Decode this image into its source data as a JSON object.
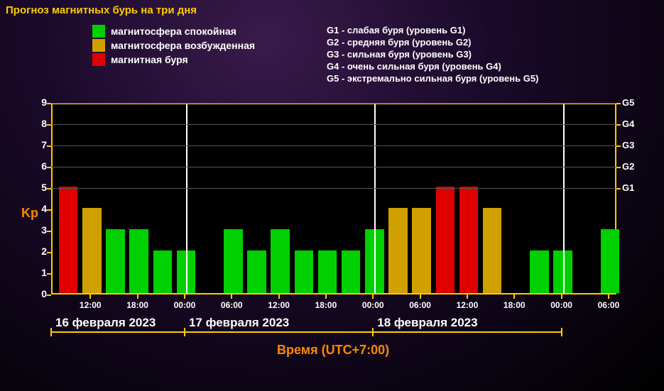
{
  "title": "Прогноз магнитных бурь на три дня",
  "legend_left": [
    {
      "color": "#00d000",
      "label": "магнитосфера спокойная"
    },
    {
      "color": "#d0a000",
      "label": "магнитосфера возбужденная"
    },
    {
      "color": "#e00000",
      "label": "магнитная буря"
    }
  ],
  "legend_right": [
    "G1 - слабая буря (уровень G1)",
    "G2 - средняя буря (уровень G2)",
    "G3 - сильная буря (уровень G3)",
    "G4 - очень сильная буря (уровень G4)",
    "G5 - экстремально сильная буря (уровень G5)"
  ],
  "chart": {
    "type": "bar",
    "background_color": "#000000",
    "border_color": "#ffcc00",
    "y_label": "Kp",
    "y_label_color": "#ff8800",
    "x_label": "Время (UTC+7:00)",
    "x_label_color": "#ff8800",
    "ylim": [
      0,
      9
    ],
    "yticks_left": [
      0,
      1,
      2,
      3,
      4,
      5,
      6,
      7,
      8,
      9
    ],
    "yticks_right": [
      {
        "value": 5,
        "label": "G1"
      },
      {
        "value": 6,
        "label": "G2"
      },
      {
        "value": 7,
        "label": "G3"
      },
      {
        "value": 8,
        "label": "G4"
      },
      {
        "value": 9,
        "label": "G5"
      }
    ],
    "x_start_hour": 7,
    "x_end_hour": 79,
    "time_ticks": [
      "12:00",
      "18:00",
      "00:00",
      "06:00",
      "12:00",
      "18:00",
      "00:00",
      "06:00",
      "12:00",
      "18:00",
      "00:00",
      "06:00"
    ],
    "time_tick_positions": [
      12,
      18,
      24,
      30,
      36,
      42,
      48,
      54,
      60,
      66,
      72,
      78
    ],
    "day_separators": [
      24,
      48,
      72
    ],
    "dates": [
      {
        "label": "16 февраля 2023",
        "from": 7,
        "to": 24
      },
      {
        "label": "17 февраля 2023",
        "from": 24,
        "to": 48
      },
      {
        "label": "18 февраля 2023",
        "from": 48,
        "to": 72
      }
    ],
    "bar_width_hours": 2.4,
    "colors": {
      "green": "#00d000",
      "orange": "#d0a000",
      "red": "#e00000"
    },
    "bars": [
      {
        "t": 9,
        "kp": 5,
        "c": "red"
      },
      {
        "t": 12,
        "kp": 4,
        "c": "orange"
      },
      {
        "t": 15,
        "kp": 3,
        "c": "green"
      },
      {
        "t": 18,
        "kp": 3,
        "c": "green"
      },
      {
        "t": 21,
        "kp": 2,
        "c": "green"
      },
      {
        "t": 24,
        "kp": 2,
        "c": "green"
      },
      {
        "t": 30,
        "kp": 3,
        "c": "green"
      },
      {
        "t": 33,
        "kp": 2,
        "c": "green"
      },
      {
        "t": 36,
        "kp": 3,
        "c": "green"
      },
      {
        "t": 39,
        "kp": 2,
        "c": "green"
      },
      {
        "t": 42,
        "kp": 2,
        "c": "green"
      },
      {
        "t": 45,
        "kp": 2,
        "c": "green"
      },
      {
        "t": 48,
        "kp": 3,
        "c": "green"
      },
      {
        "t": 51,
        "kp": 4,
        "c": "orange"
      },
      {
        "t": 54,
        "kp": 4,
        "c": "orange"
      },
      {
        "t": 57,
        "kp": 5,
        "c": "red"
      },
      {
        "t": 60,
        "kp": 5,
        "c": "red"
      },
      {
        "t": 63,
        "kp": 4,
        "c": "orange"
      },
      {
        "t": 69,
        "kp": 2,
        "c": "green"
      },
      {
        "t": 72,
        "kp": 2,
        "c": "green"
      },
      {
        "t": 78,
        "kp": 3,
        "c": "green"
      }
    ]
  }
}
